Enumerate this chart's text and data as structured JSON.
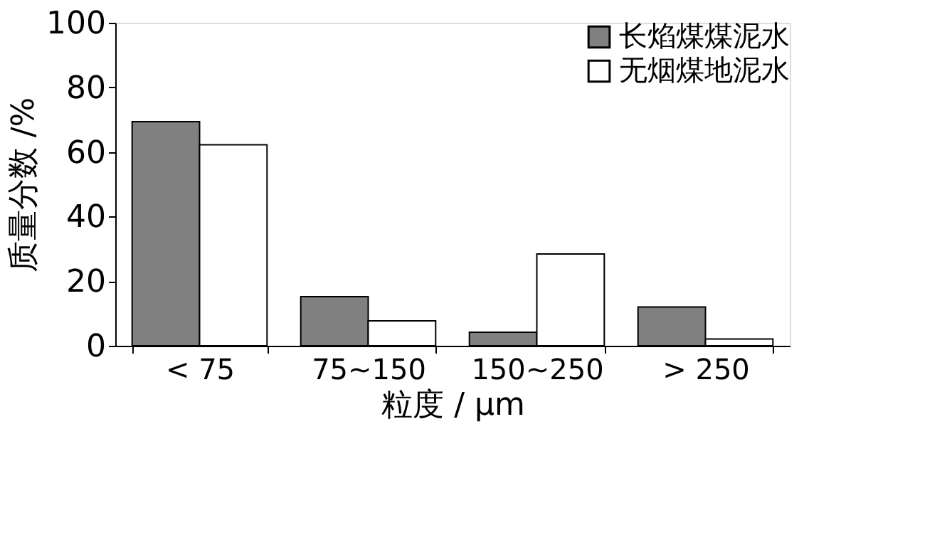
{
  "chart_data": {
    "type": "bar",
    "xlabel": "粒度 / μm",
    "ylabel": "质量分数 /%",
    "categories": [
      "< 75",
      "75~150",
      "150~250",
      "> 250"
    ],
    "series": [
      {
        "name": "长焰煤煤泥水",
        "color": "#808080",
        "values": [
          69.4,
          15.2,
          4.2,
          12.0
        ]
      },
      {
        "name": "无烟煤地泥水",
        "color": "#ffffff",
        "values": [
          62.2,
          7.7,
          28.4,
          2.1
        ]
      }
    ],
    "ylim": [
      0,
      100
    ],
    "yticks": [
      0,
      20,
      40,
      60,
      80,
      100
    ],
    "grid": false,
    "legend": "top right"
  }
}
